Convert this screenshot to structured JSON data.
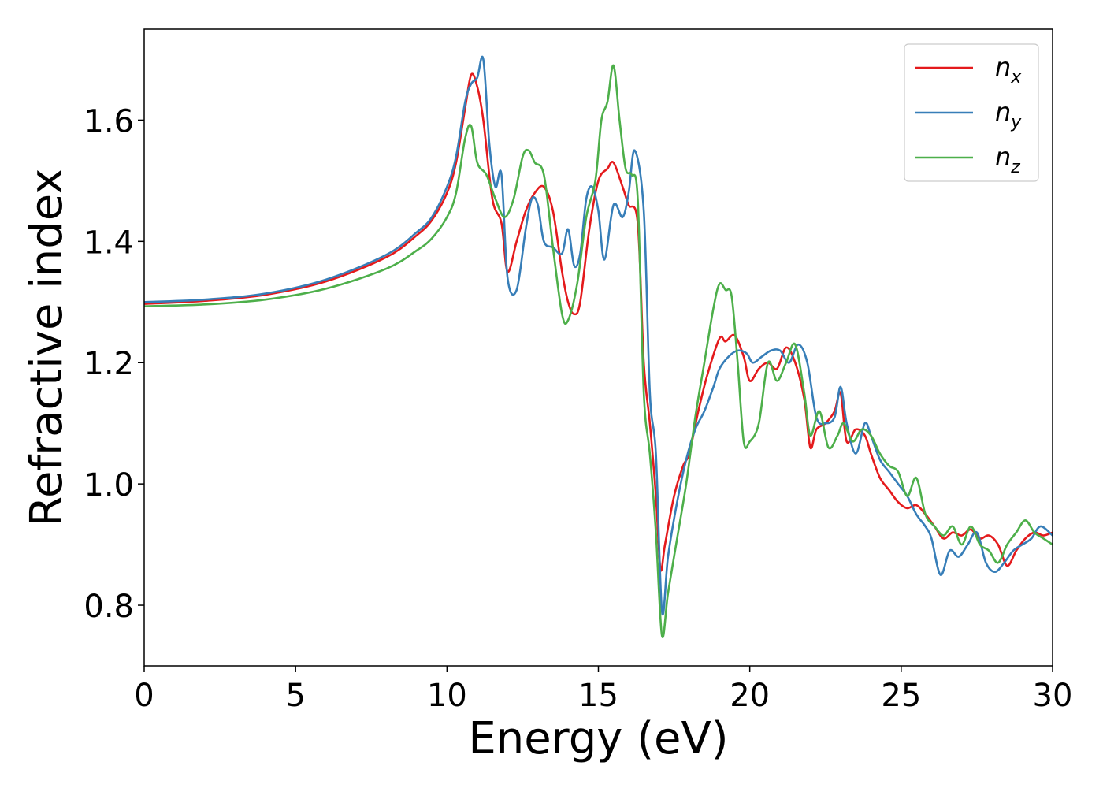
{
  "chart_data": {
    "type": "line",
    "title": "",
    "xlabel": "Energy (eV)",
    "ylabel": "Refractive index",
    "xlim": [
      0,
      30
    ],
    "ylim": [
      0.7,
      1.75
    ],
    "xticks": [
      0,
      5,
      10,
      15,
      20,
      25,
      30
    ],
    "xtick_labels": [
      "0",
      "5",
      "10",
      "15",
      "20",
      "25",
      "30"
    ],
    "yticks": [
      0.8,
      1.0,
      1.2,
      1.4,
      1.6
    ],
    "ytick_labels": [
      "0.8",
      "1.0",
      "1.2",
      "1.4",
      "1.6"
    ],
    "grid": false,
    "legend_position": "top-right",
    "series": [
      {
        "name": "n_x",
        "label_main": "n",
        "label_sub": "x",
        "color": "#e41a1c",
        "x": [
          0,
          2,
          4,
          6,
          8,
          9,
          9.5,
          10,
          10.3,
          10.6,
          10.8,
          11.0,
          11.2,
          11.5,
          11.8,
          12.0,
          12.3,
          12.6,
          12.9,
          13.2,
          13.5,
          13.8,
          14.0,
          14.2,
          14.4,
          14.7,
          15.0,
          15.3,
          15.5,
          15.8,
          16.0,
          16.3,
          16.5,
          16.7,
          16.9,
          17.05,
          17.2,
          17.5,
          17.8,
          18.0,
          18.3,
          18.6,
          19.0,
          19.2,
          19.5,
          19.8,
          20.0,
          20.3,
          20.6,
          20.9,
          21.2,
          21.5,
          21.8,
          22.0,
          22.2,
          22.5,
          22.8,
          23.0,
          23.2,
          23.5,
          23.8,
          24.0,
          24.3,
          24.6,
          24.9,
          25.2,
          25.5,
          25.8,
          26.1,
          26.4,
          26.7,
          27.0,
          27.3,
          27.6,
          27.9,
          28.2,
          28.5,
          28.8,
          29.1,
          29.4,
          29.7,
          30
        ],
        "y": [
          1.297,
          1.302,
          1.312,
          1.334,
          1.374,
          1.41,
          1.435,
          1.48,
          1.53,
          1.62,
          1.675,
          1.655,
          1.6,
          1.47,
          1.43,
          1.35,
          1.4,
          1.45,
          1.48,
          1.49,
          1.45,
          1.35,
          1.3,
          1.28,
          1.3,
          1.42,
          1.5,
          1.52,
          1.53,
          1.49,
          1.46,
          1.43,
          1.2,
          1.1,
          0.98,
          0.86,
          0.9,
          0.98,
          1.03,
          1.05,
          1.12,
          1.18,
          1.24,
          1.235,
          1.245,
          1.21,
          1.17,
          1.19,
          1.2,
          1.19,
          1.225,
          1.2,
          1.14,
          1.06,
          1.09,
          1.1,
          1.12,
          1.15,
          1.07,
          1.09,
          1.08,
          1.05,
          1.01,
          0.99,
          0.97,
          0.96,
          0.965,
          0.95,
          0.93,
          0.91,
          0.92,
          0.915,
          0.925,
          0.91,
          0.915,
          0.9,
          0.865,
          0.89,
          0.91,
          0.92,
          0.915,
          0.92
        ]
      },
      {
        "name": "n_y",
        "label_main": "n",
        "label_sub": "y",
        "color": "#377eb8",
        "x": [
          0,
          2,
          4,
          6,
          8,
          9,
          9.5,
          10,
          10.3,
          10.6,
          10.8,
          11.0,
          11.2,
          11.4,
          11.6,
          11.8,
          12.0,
          12.3,
          12.6,
          12.8,
          13.0,
          13.2,
          13.5,
          13.8,
          14.0,
          14.2,
          14.4,
          14.6,
          14.8,
          15.0,
          15.2,
          15.5,
          15.8,
          16.0,
          16.2,
          16.5,
          16.7,
          16.9,
          17.1,
          17.3,
          17.6,
          17.9,
          18.2,
          18.5,
          18.8,
          19.0,
          19.3,
          19.6,
          19.9,
          20.1,
          20.4,
          20.7,
          21.0,
          21.3,
          21.6,
          21.9,
          22.2,
          22.5,
          22.8,
          23.0,
          23.2,
          23.5,
          23.8,
          24.0,
          24.3,
          24.6,
          24.9,
          25.2,
          25.5,
          25.8,
          26.0,
          26.3,
          26.6,
          26.9,
          27.2,
          27.5,
          27.8,
          28.1,
          28.4,
          28.7,
          29.0,
          29.3,
          29.6,
          30
        ],
        "y": [
          1.3,
          1.304,
          1.314,
          1.337,
          1.378,
          1.415,
          1.44,
          1.49,
          1.54,
          1.63,
          1.66,
          1.67,
          1.7,
          1.56,
          1.49,
          1.51,
          1.34,
          1.32,
          1.42,
          1.47,
          1.46,
          1.4,
          1.39,
          1.38,
          1.42,
          1.36,
          1.38,
          1.47,
          1.49,
          1.45,
          1.37,
          1.46,
          1.44,
          1.48,
          1.55,
          1.45,
          1.15,
          1.05,
          0.79,
          0.88,
          0.97,
          1.04,
          1.09,
          1.12,
          1.16,
          1.19,
          1.21,
          1.22,
          1.215,
          1.2,
          1.21,
          1.22,
          1.22,
          1.2,
          1.23,
          1.2,
          1.11,
          1.1,
          1.11,
          1.16,
          1.1,
          1.05,
          1.1,
          1.08,
          1.04,
          1.02,
          1.0,
          0.98,
          0.95,
          0.93,
          0.91,
          0.85,
          0.89,
          0.88,
          0.9,
          0.92,
          0.87,
          0.855,
          0.87,
          0.89,
          0.9,
          0.91,
          0.93,
          0.915
        ]
      },
      {
        "name": "n_z",
        "label_main": "n",
        "label_sub": "z",
        "color": "#4daf4a",
        "x": [
          0,
          2,
          4,
          6,
          8,
          9,
          9.5,
          10,
          10.3,
          10.6,
          10.8,
          11.0,
          11.3,
          11.6,
          11.9,
          12.2,
          12.5,
          12.7,
          12.9,
          13.2,
          13.5,
          13.8,
          14.0,
          14.3,
          14.6,
          14.9,
          15.1,
          15.3,
          15.5,
          15.7,
          15.9,
          16.1,
          16.3,
          16.5,
          16.7,
          16.9,
          17.1,
          17.3,
          17.6,
          17.9,
          18.2,
          18.5,
          18.8,
          19.0,
          19.2,
          19.4,
          19.6,
          19.8,
          20.0,
          20.3,
          20.6,
          20.9,
          21.2,
          21.5,
          21.8,
          22.0,
          22.3,
          22.6,
          22.9,
          23.1,
          23.4,
          23.7,
          24.0,
          24.3,
          24.6,
          24.9,
          25.2,
          25.5,
          25.8,
          26.1,
          26.4,
          26.7,
          27.0,
          27.3,
          27.6,
          27.9,
          28.2,
          28.5,
          28.8,
          29.1,
          29.4,
          29.7,
          30
        ],
        "y": [
          1.293,
          1.296,
          1.304,
          1.322,
          1.355,
          1.385,
          1.405,
          1.44,
          1.48,
          1.57,
          1.59,
          1.53,
          1.51,
          1.47,
          1.44,
          1.47,
          1.54,
          1.55,
          1.53,
          1.51,
          1.39,
          1.28,
          1.27,
          1.33,
          1.44,
          1.5,
          1.6,
          1.63,
          1.69,
          1.6,
          1.52,
          1.51,
          1.47,
          1.15,
          1.05,
          0.92,
          0.75,
          0.82,
          0.91,
          1.0,
          1.11,
          1.2,
          1.29,
          1.33,
          1.32,
          1.31,
          1.2,
          1.07,
          1.07,
          1.1,
          1.2,
          1.17,
          1.2,
          1.23,
          1.15,
          1.08,
          1.12,
          1.06,
          1.08,
          1.1,
          1.07,
          1.09,
          1.08,
          1.05,
          1.03,
          1.02,
          0.98,
          1.01,
          0.95,
          0.93,
          0.915,
          0.93,
          0.9,
          0.93,
          0.9,
          0.89,
          0.87,
          0.9,
          0.92,
          0.94,
          0.92,
          0.91,
          0.9
        ]
      }
    ]
  }
}
